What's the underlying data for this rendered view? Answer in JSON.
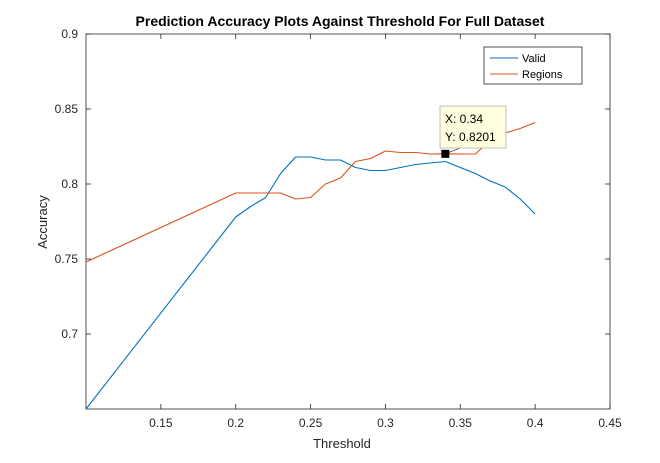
{
  "chart_data": {
    "type": "line",
    "title": "Prediction Accuracy Plots Against Threshold For Full Dataset",
    "xlabel": "Threshold",
    "ylabel": "Accuracy",
    "xlim": [
      0.1,
      0.45
    ],
    "ylim": [
      0.65,
      0.9
    ],
    "xticks": [
      0.15,
      0.2,
      0.25,
      0.3,
      0.35,
      0.4,
      0.45
    ],
    "xtick_labels": [
      "0.15",
      "0.2",
      "0.25",
      "0.3",
      "0.35",
      "0.4",
      "0.45"
    ],
    "yticks": [
      0.7,
      0.75,
      0.8,
      0.85,
      0.9
    ],
    "ytick_labels": [
      "0.7",
      "0.75",
      "0.8",
      "0.85",
      "0.9"
    ],
    "grid": false,
    "legend_position": "top-right",
    "series": [
      {
        "name": "Valid",
        "color": "#0072BD",
        "x": [
          0.1,
          0.2,
          0.21,
          0.22,
          0.23,
          0.24,
          0.25,
          0.26,
          0.27,
          0.28,
          0.29,
          0.3,
          0.31,
          0.32,
          0.33,
          0.34,
          0.35,
          0.36,
          0.37,
          0.38,
          0.39,
          0.4
        ],
        "y": [
          0.65,
          0.778,
          0.785,
          0.791,
          0.807,
          0.818,
          0.818,
          0.816,
          0.816,
          0.811,
          0.809,
          0.809,
          0.811,
          0.813,
          0.814,
          0.815,
          0.811,
          0.807,
          0.802,
          0.798,
          0.79,
          0.78
        ]
      },
      {
        "name": "Regions",
        "color": "#D95319",
        "x": [
          0.1,
          0.2,
          0.21,
          0.22,
          0.23,
          0.24,
          0.25,
          0.26,
          0.27,
          0.28,
          0.29,
          0.3,
          0.31,
          0.32,
          0.33,
          0.34,
          0.35,
          0.36,
          0.37,
          0.38,
          0.39,
          0.4
        ],
        "y": [
          0.748,
          0.794,
          0.794,
          0.794,
          0.794,
          0.79,
          0.791,
          0.8,
          0.804,
          0.815,
          0.817,
          0.822,
          0.821,
          0.821,
          0.82,
          0.8201,
          0.82,
          0.82,
          0.829,
          0.834,
          0.837,
          0.841
        ]
      }
    ],
    "datatip": {
      "x": 0.34,
      "y": 0.8201,
      "x_text": "X: 0.34",
      "y_text": "Y: 0.8201"
    }
  }
}
